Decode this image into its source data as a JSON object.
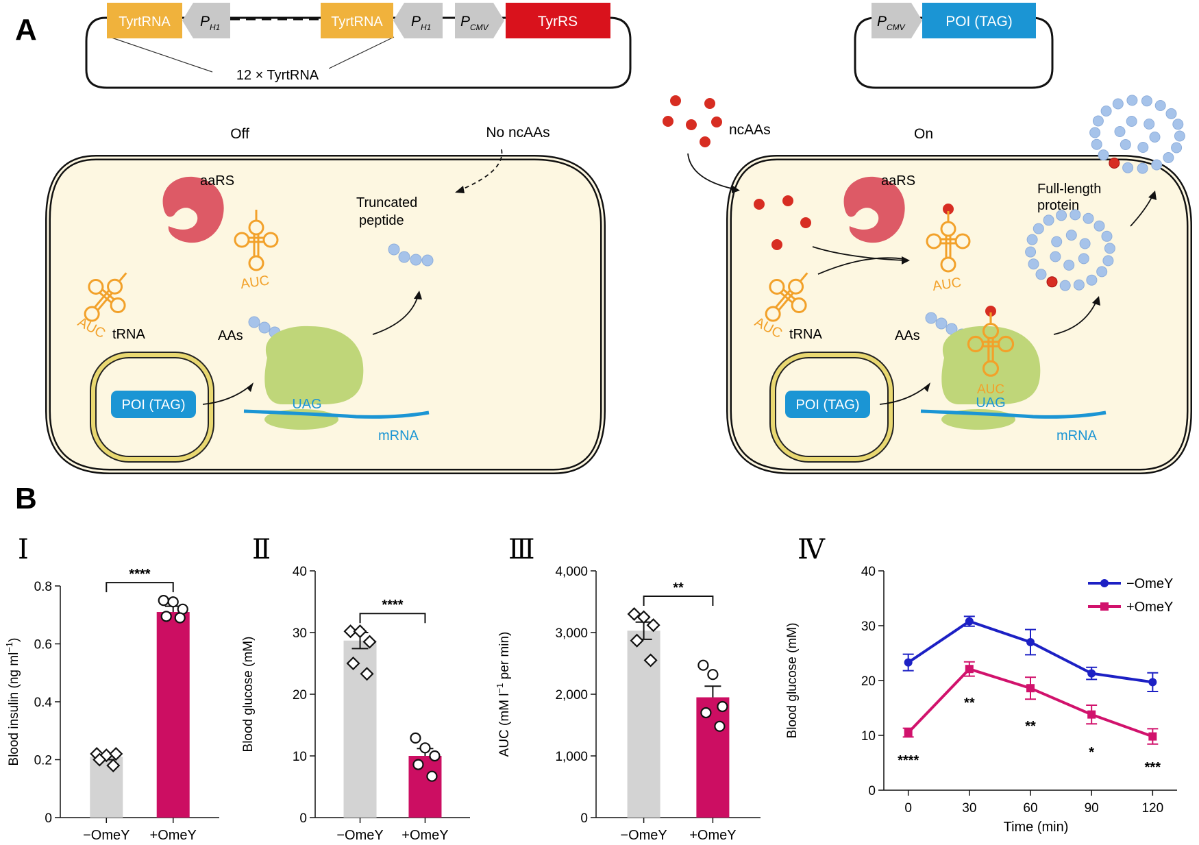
{
  "panel_labels": {
    "a": "A",
    "b": "B"
  },
  "plasmid1": {
    "tyrtrna_1": "TyrtRNA",
    "ph1_1": "P",
    "ph1_1_sub": "H1",
    "tyrtrna_2": "TyrtRNA",
    "ph1_2": "P",
    "ph1_2_sub": "H1",
    "pcmv": "P",
    "pcmv_sub": "CMV",
    "tyrrs": "TyrRS",
    "copies": "12 × TyrtRNA"
  },
  "plasmid2": {
    "pcmv": "P",
    "pcmv_sub": "CMV",
    "poi": "POI (TAG)"
  },
  "cell_off": {
    "state": "Off",
    "no_ncaas": "No ncAAs",
    "aars": "aaRS",
    "truncated_1": "Truncated",
    "truncated_2": "peptide",
    "auc_1": "AUC",
    "auc_2": "AUC",
    "trna": "tRNA",
    "aas": "AAs",
    "poi": "POI (TAG)",
    "uag": "UAG",
    "mrna": "mRNA"
  },
  "cell_on": {
    "state": "On",
    "ncaas": "ncAAs",
    "aars": "aaRS",
    "full_length_1": "Full-length",
    "full_length_2": "protein",
    "auc_1": "AUC",
    "auc_2": "AUC",
    "auc_3": "AUC",
    "trna": "tRNA",
    "aas": "AAs",
    "poi": "POI (TAG)",
    "uag": "UAG",
    "mrna": "mRNA"
  },
  "colors": {
    "tyrtrna": "#f0b23c",
    "promoter": "#c8c8c8",
    "tyrrs": "#d9121c",
    "poi": "#1b95d4",
    "cell_fill": "#fdf7e1",
    "aars": "#dd5a66",
    "trna": "#f2a12a",
    "ribosome": "#bfd679",
    "nucleus_ring": "#e9d871",
    "aa_blue": "#a6c3ea",
    "ncaa_red": "#d72d22",
    "bar_minus": "#d3d3d3",
    "bar_plus": "#cc0e62",
    "line_minus": "#1c20c4",
    "line_plus": "#d1126c"
  },
  "chart_data": [
    {
      "panel": "Ⅰ",
      "type": "bar",
      "ylabel": "Blood insulin (ng ml",
      "ylabel_sup": "−1",
      "ylabel_end": ")",
      "ylim": [
        0,
        0.8
      ],
      "yticks": [
        "0",
        "0.2",
        "0.4",
        "0.6",
        "0.8"
      ],
      "yticks_values": [
        0,
        0.2,
        0.4,
        0.6,
        0.8
      ],
      "categories": [
        "−OmeY",
        "+OmeY"
      ],
      "values": [
        0.21,
        0.71
      ],
      "errors": [
        0.01,
        0.02
      ],
      "points": [
        [
          0.22,
          0.215,
          0.22,
          0.2,
          0.18
        ],
        [
          0.75,
          0.745,
          0.72,
          0.695,
          0.69
        ]
      ],
      "significance": "****"
    },
    {
      "panel": "Ⅱ",
      "type": "bar",
      "ylabel": "Blood glucose (mM)",
      "ylim": [
        0,
        40
      ],
      "yticks": [
        "0",
        "10",
        "20",
        "30",
        "40"
      ],
      "yticks_values": [
        0,
        10,
        20,
        30,
        40
      ],
      "categories": [
        "−OmeY",
        "+OmeY"
      ],
      "values": [
        28.7,
        10.0
      ],
      "errors": [
        1.3,
        1.2
      ],
      "points": [
        [
          30.2,
          30.2,
          28.5,
          25,
          23.3
        ],
        [
          12.9,
          11.3,
          10.0,
          8.6,
          6.7
        ]
      ],
      "significance": "****"
    },
    {
      "panel": "Ⅲ",
      "type": "bar",
      "ylabel": "AUC (mM l",
      "ylabel_sup": "−1",
      "ylabel_end": " per min)",
      "ylim": [
        0,
        4000
      ],
      "yticks": [
        "0",
        "1,000",
        "2,000",
        "3,000",
        "4,000"
      ],
      "yticks_values": [
        0,
        1000,
        2000,
        3000,
        4000
      ],
      "categories": [
        "−OmeY",
        "+OmeY"
      ],
      "values": [
        3030,
        1950
      ],
      "errors": [
        140,
        180
      ],
      "points": [
        [
          3300,
          3250,
          3120,
          2870,
          2550
        ],
        [
          2470,
          2320,
          1800,
          1700,
          1480
        ]
      ],
      "significance": "**"
    },
    {
      "panel": "Ⅳ",
      "type": "line",
      "xlabel": "Time (min)",
      "ylabel": "Blood glucose (mM)",
      "x": [
        0,
        30,
        60,
        90,
        120
      ],
      "xticks": [
        "0",
        "30",
        "60",
        "90",
        "120"
      ],
      "xlim": [
        -12,
        132
      ],
      "ylim": [
        0,
        40
      ],
      "yticks": [
        "0",
        "10",
        "20",
        "30",
        "40"
      ],
      "yticks_values": [
        0,
        10,
        20,
        30,
        40
      ],
      "legend_position": "top-right",
      "series": [
        {
          "name": "−OmeY",
          "values": [
            23.3,
            30.8,
            27.0,
            21.3,
            19.7
          ],
          "errors": [
            1.5,
            0.9,
            2.3,
            1.1,
            1.7
          ]
        },
        {
          "name": "+OmeY",
          "values": [
            10.5,
            22.1,
            18.6,
            13.8,
            9.8
          ],
          "errors": [
            0.8,
            1.3,
            2.0,
            1.7,
            1.4
          ]
        }
      ],
      "significance": [
        "****",
        "**",
        "**",
        "*",
        "***"
      ]
    }
  ]
}
